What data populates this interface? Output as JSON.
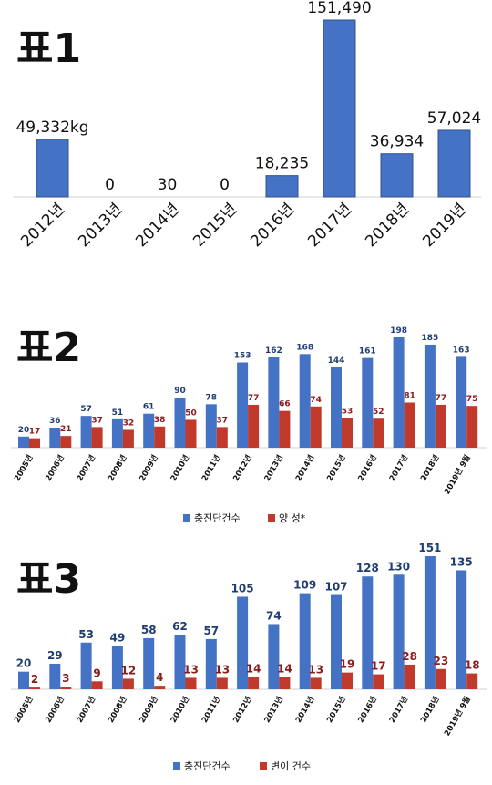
{
  "chart_data": [
    {
      "type": "bar",
      "title": "표1",
      "categories": [
        "2012년",
        "2013년",
        "2014년",
        "2015년",
        "2016년",
        "2017년",
        "2018년",
        "2019년"
      ],
      "values": [
        49332,
        0,
        30,
        0,
        18235,
        151490,
        36934,
        57024
      ],
      "data_labels": [
        "49,332kg",
        "0",
        "30",
        "0",
        "18,235",
        "151,490",
        "36,934",
        "57,024"
      ],
      "colors": [
        "#4472c4"
      ]
    },
    {
      "type": "bar",
      "title": "표2",
      "categories": [
        "2005년",
        "2006년",
        "2007년",
        "2008년",
        "2009년",
        "2010년",
        "2011년",
        "2012년",
        "2013년",
        "2014년",
        "2015년",
        "2016년",
        "2017년",
        "2018년",
        "2019년 9월"
      ],
      "series": [
        {
          "name": "충진단건수",
          "values": [
            20,
            36,
            57,
            51,
            61,
            90,
            78,
            153,
            162,
            168,
            144,
            161,
            198,
            185,
            163
          ],
          "color": "#4472c4"
        },
        {
          "name": "양 성*",
          "values": [
            17,
            21,
            37,
            32,
            38,
            50,
            37,
            77,
            66,
            74,
            53,
            52,
            81,
            77,
            75
          ],
          "color": "#c0392b"
        }
      ],
      "legend": "bottom"
    },
    {
      "type": "bar",
      "title": "표3",
      "categories": [
        "2005년",
        "2006년",
        "2007년",
        "2008년",
        "2009년",
        "2010년",
        "2011년",
        "2012년",
        "2013년",
        "2014년",
        "2015년",
        "2016년",
        "2017년",
        "2018년",
        "2019년 9월"
      ],
      "series": [
        {
          "name": "충진단건수",
          "values": [
            20,
            29,
            53,
            49,
            58,
            62,
            57,
            105,
            74,
            109,
            107,
            128,
            130,
            151,
            135
          ],
          "color": "#4472c4"
        },
        {
          "name": "변이 건수",
          "values": [
            2,
            3,
            9,
            12,
            4,
            13,
            13,
            14,
            14,
            13,
            19,
            17,
            28,
            23,
            18
          ],
          "color": "#c0392b"
        }
      ],
      "legend": "bottom"
    }
  ]
}
